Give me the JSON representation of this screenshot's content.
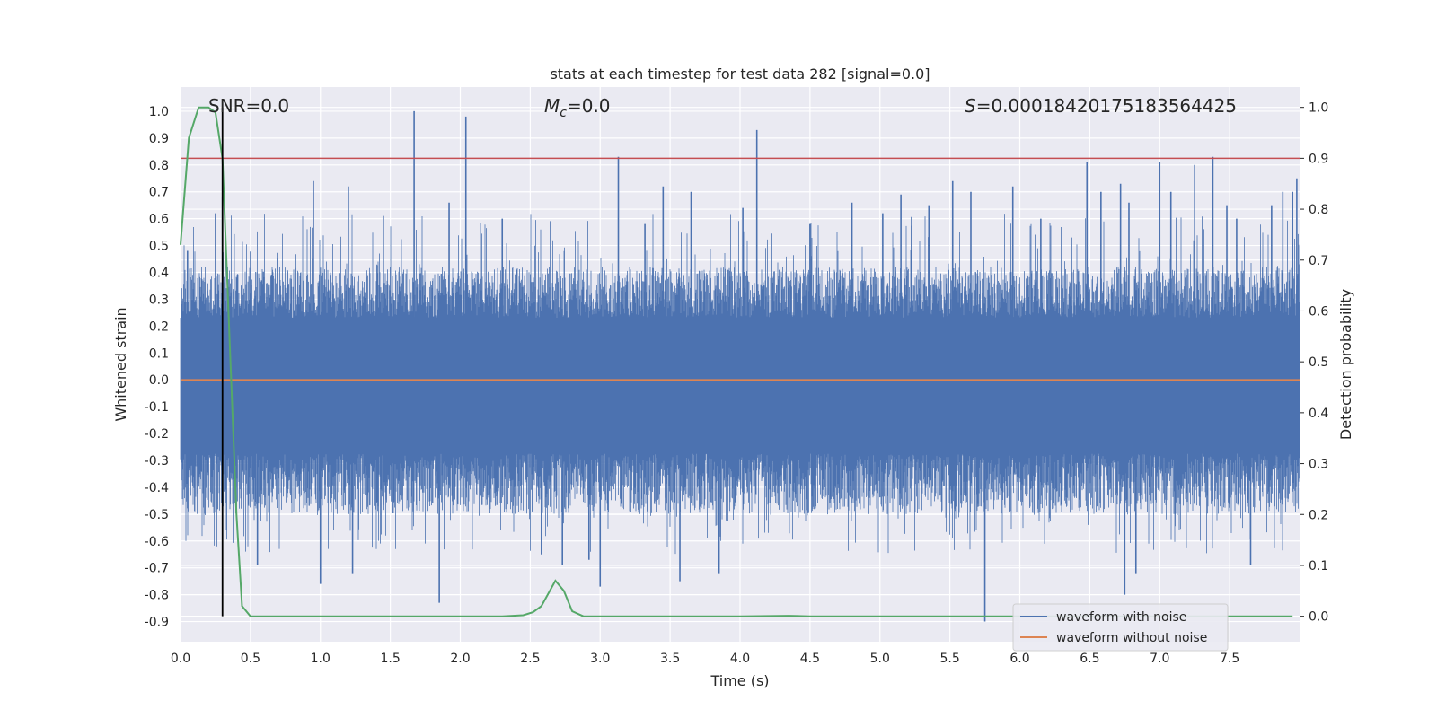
{
  "chart_data": {
    "type": "line",
    "title": "stats at each timestep for test data 282 [signal=0.0]",
    "xlabel": "Time (s)",
    "ylabel_left": "Whitened strain",
    "ylabel_right": "Detection probability",
    "xlim": [
      0.0,
      8.0
    ],
    "ylim_left": [
      -0.975,
      1.09
    ],
    "ylim_right": [
      -0.05,
      1.04
    ],
    "x_ticks": [
      "0.0",
      "0.5",
      "1.0",
      "1.5",
      "2.0",
      "2.5",
      "3.0",
      "3.5",
      "4.0",
      "4.5",
      "5.0",
      "5.5",
      "6.0",
      "6.5",
      "7.0",
      "7.5"
    ],
    "y_ticks_left": [
      "1.0",
      "0.9",
      "0.8",
      "0.7",
      "0.6",
      "0.5",
      "0.4",
      "0.3",
      "0.2",
      "0.1",
      "0.0",
      "-0.1",
      "-0.2",
      "-0.3",
      "-0.4",
      "-0.5",
      "-0.6",
      "-0.7",
      "-0.8",
      "-0.9"
    ],
    "y_ticks_right": [
      "1.0",
      "0.9",
      "0.8",
      "0.7",
      "0.6",
      "0.5",
      "0.4",
      "0.3",
      "0.2",
      "0.1",
      "0.0"
    ],
    "annotations": {
      "snr": "SNR=0.0",
      "mc_symbol": "M",
      "mc_sub": "c",
      "mc_value": "=0.0",
      "s_symbol": "S",
      "s_value": "=0.00018420175183564425"
    },
    "legend": {
      "placement": "lower-right",
      "entries": [
        {
          "label": "waveform with noise",
          "color": "#4c72b0"
        },
        {
          "label": "waveform without noise",
          "color": "#dd8452"
        }
      ]
    },
    "series": [
      {
        "name": "waveform with noise",
        "axis": "left",
        "color": "#4c72b0",
        "style": "noise",
        "typical_upper": 0.42,
        "typical_lower": -0.5,
        "x": [
          0.05,
          0.25,
          0.3,
          0.55,
          0.95,
          1.0,
          1.2,
          1.23,
          1.45,
          1.67,
          1.85,
          1.92,
          2.04,
          2.3,
          2.58,
          2.73,
          2.92,
          3.0,
          3.13,
          3.32,
          3.45,
          3.57,
          3.65,
          3.85,
          4.02,
          4.12,
          4.5,
          4.8,
          5.02,
          5.15,
          5.35,
          5.52,
          5.65,
          5.75,
          5.95,
          6.15,
          6.48,
          6.58,
          6.72,
          6.75,
          6.78,
          6.83,
          7.0,
          7.08,
          7.25,
          7.38,
          7.48,
          7.55,
          7.65,
          7.8,
          7.88,
          7.95,
          7.98
        ],
        "y": [
          0.48,
          0.62,
          0.68,
          -0.69,
          0.74,
          -0.76,
          0.72,
          -0.72,
          0.61,
          1.0,
          -0.83,
          0.66,
          0.98,
          0.6,
          -0.65,
          -0.69,
          -0.67,
          -0.77,
          0.83,
          0.58,
          0.72,
          -0.75,
          0.7,
          -0.72,
          0.64,
          0.93,
          0.58,
          0.66,
          0.62,
          0.69,
          0.65,
          0.74,
          0.7,
          -0.9,
          0.72,
          0.6,
          0.81,
          0.7,
          0.73,
          -0.8,
          0.66,
          -0.72,
          0.81,
          0.7,
          0.8,
          0.83,
          0.65,
          0.6,
          -0.69,
          0.65,
          0.7,
          0.7,
          0.75
        ]
      },
      {
        "name": "waveform without noise",
        "axis": "left",
        "color": "#dd8452",
        "x": [
          0.0,
          8.0
        ],
        "y": [
          0.0,
          0.0
        ]
      },
      {
        "name": "detection probability",
        "axis": "right",
        "color": "#55a868",
        "x": [
          0.0,
          0.06,
          0.13,
          0.2,
          0.25,
          0.3,
          0.35,
          0.4,
          0.44,
          0.5,
          1.0,
          2.0,
          2.3,
          2.45,
          2.52,
          2.58,
          2.68,
          2.74,
          2.8,
          2.88,
          3.0,
          3.5,
          4.0,
          4.35,
          4.5,
          5.0,
          6.0,
          7.0,
          7.95
        ],
        "y": [
          0.73,
          0.94,
          1.0,
          1.0,
          0.99,
          0.9,
          0.55,
          0.2,
          0.02,
          0.0,
          0.0,
          0.0,
          0.0,
          0.002,
          0.008,
          0.02,
          0.07,
          0.05,
          0.01,
          0.0,
          0.0,
          0.0,
          0.0,
          0.001,
          0.0,
          0.0,
          0.0,
          0.0,
          0.0
        ]
      }
    ],
    "threshold_line": {
      "axis": "right",
      "value": 0.9,
      "color": "#c44e52"
    },
    "vertical_marker": {
      "x": 0.3,
      "color": "#000000"
    }
  }
}
